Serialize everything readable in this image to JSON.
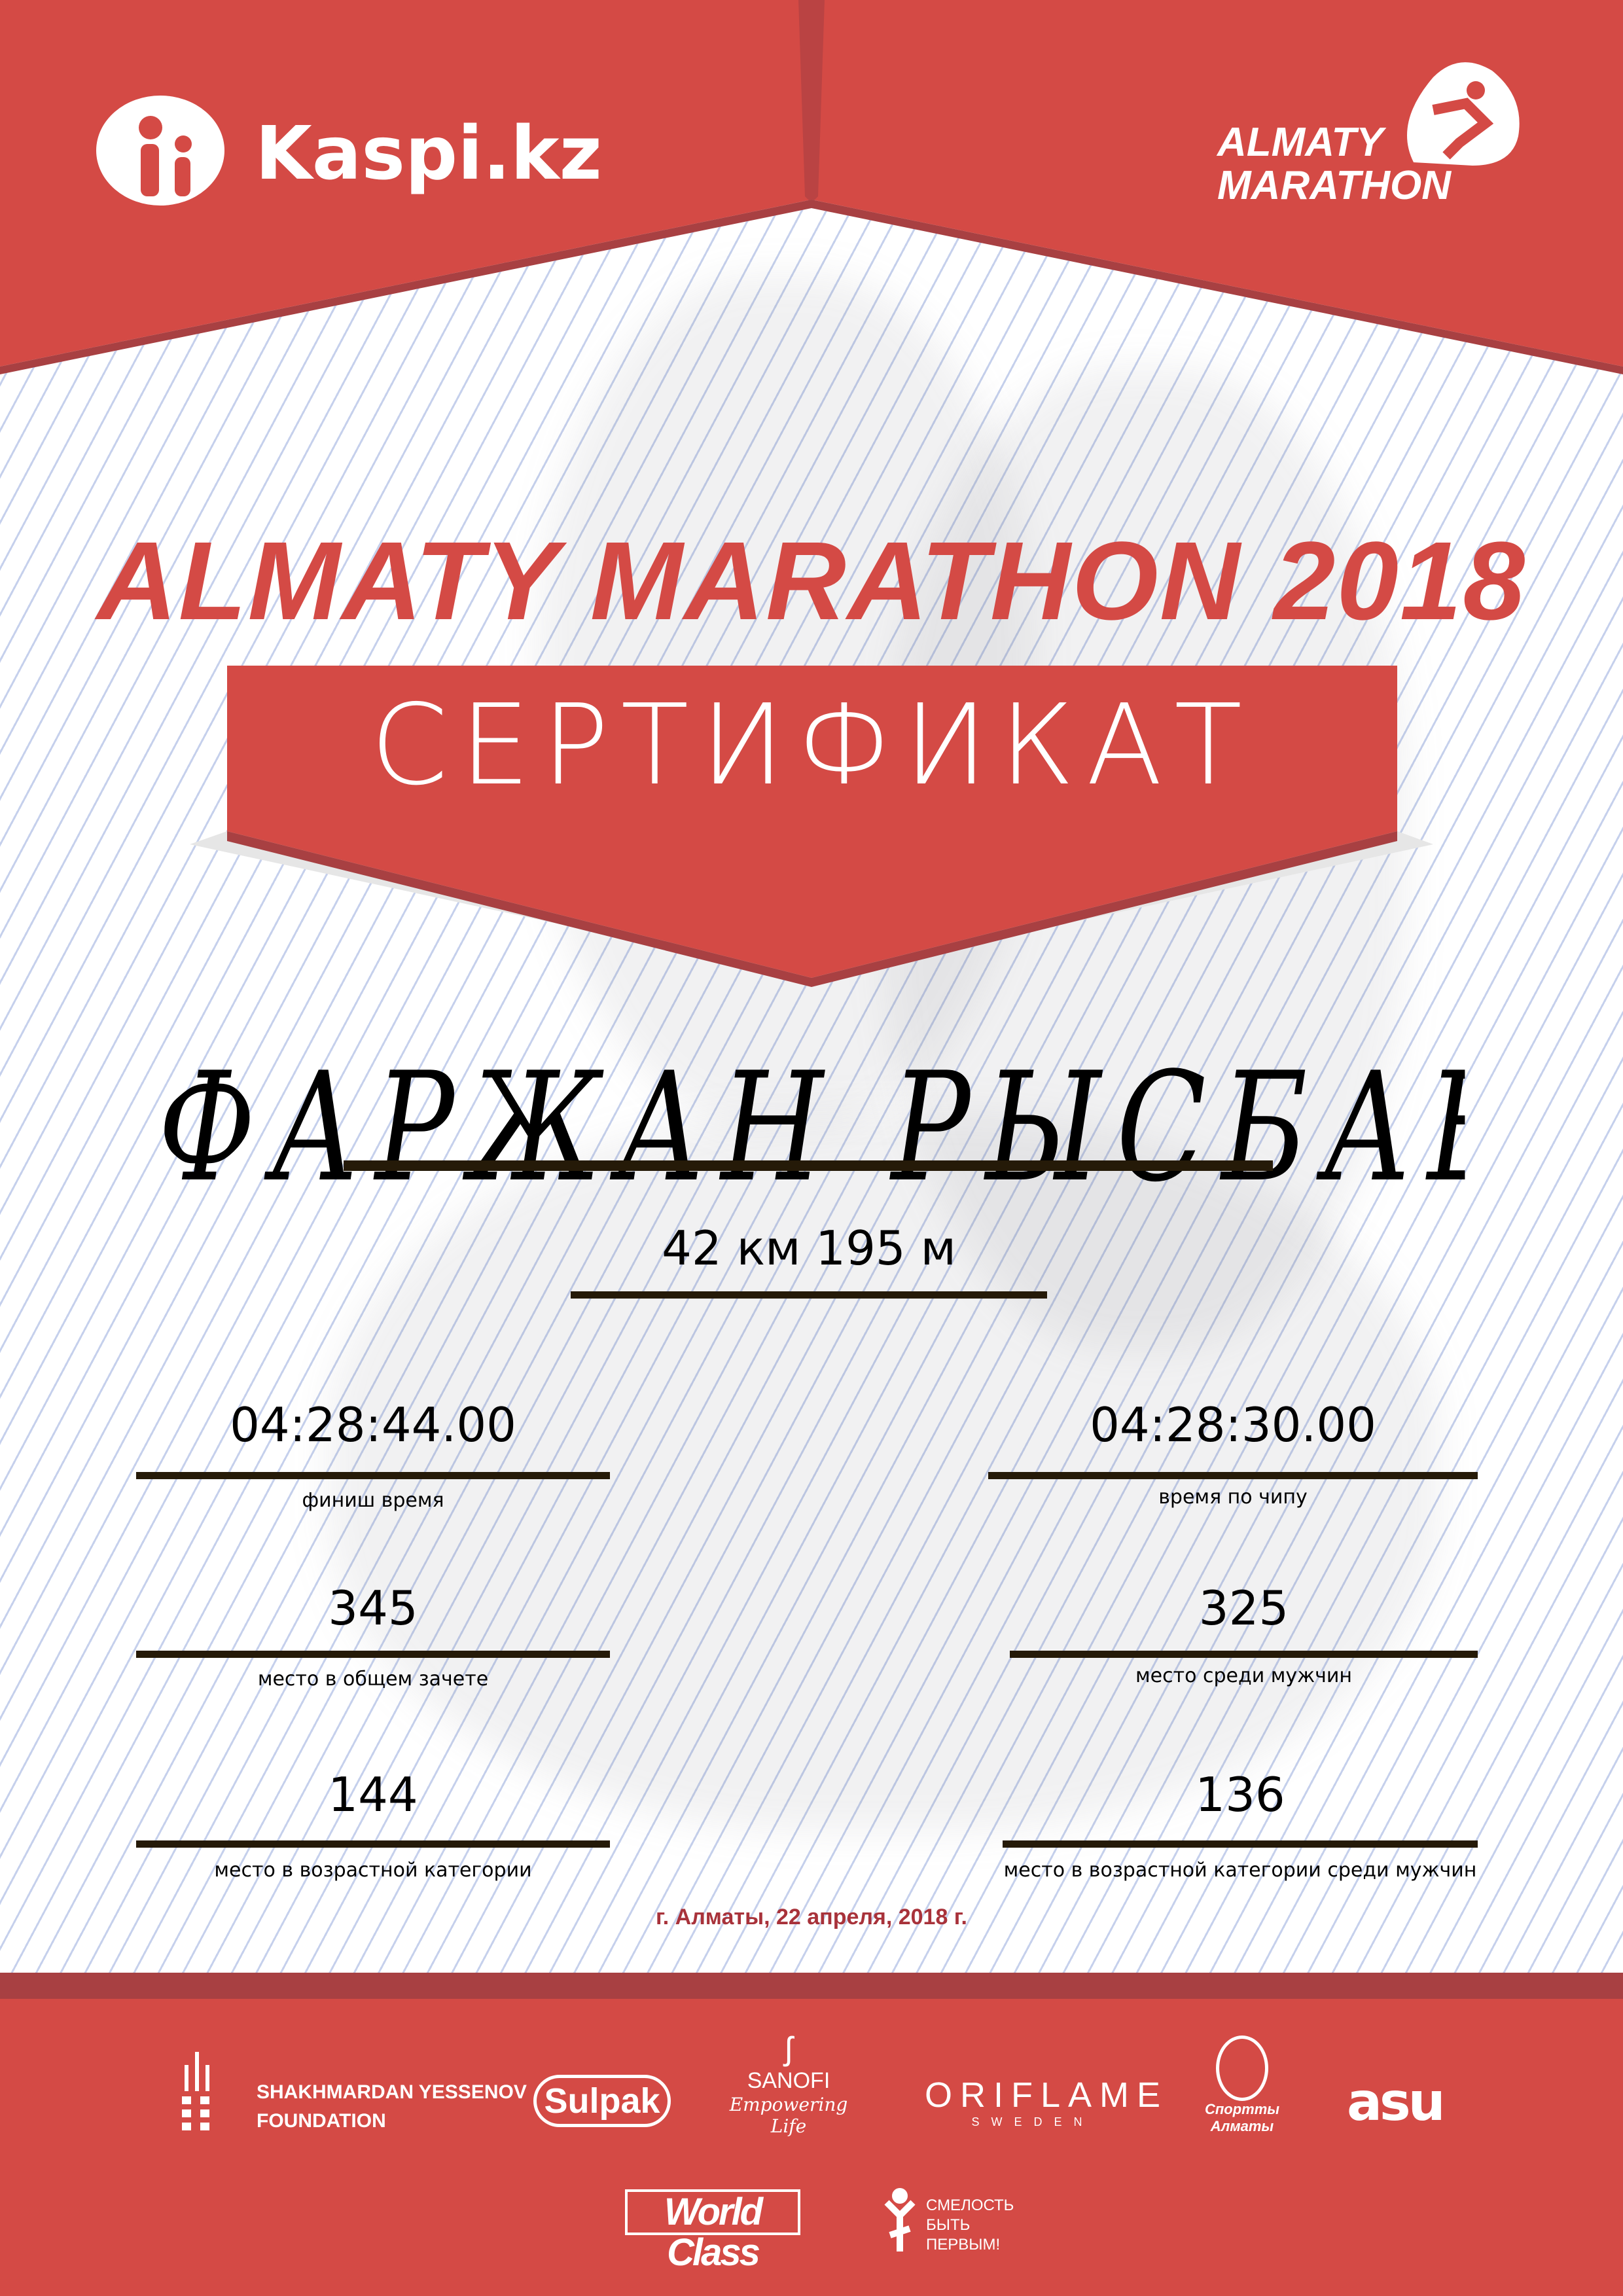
{
  "header": {
    "sponsor_logo": "Kaspi.kz",
    "event_logo_line1": "ALMATY",
    "event_logo_line2": "MARATHON"
  },
  "title": "ALMATY MARATHON 2018",
  "certificate_label": "СЕРТИФИКАТ",
  "participant_name": "ФАРЖАН РЫСБАЕВ",
  "distance": "42 км 195 м",
  "results": {
    "finish_time": {
      "value": "04:28:44.00",
      "label": "финиш время"
    },
    "chip_time": {
      "value": "04:28:30.00",
      "label": "время по чипу"
    },
    "overall_place": {
      "value": "345",
      "label": "место в общем зачете"
    },
    "gender_place": {
      "value": "325",
      "label": "место среди мужчин"
    },
    "age_place": {
      "value": "144",
      "label": "место в возрастной категории"
    },
    "age_gender_place": {
      "value": "136",
      "label": "место в возрастной категории среди мужчин"
    }
  },
  "date_place": "г. Алматы, 22 апреля, 2018 г.",
  "partners": {
    "yessenov_line1": "SHAKHMARDAN YESSENOV",
    "yessenov_line2": "FOUNDATION",
    "sulpak": "Sulpak",
    "sanofi": "SANOFI",
    "sanofi_tagline": "Empowering Life",
    "oriflame": "ORIFLAME",
    "oriflame_sub": "SWEDEN",
    "sport_almaty": "Спортты Алматы",
    "asu": "asu",
    "worldclass": "World Class",
    "fund_line1": "СМЕЛОСТЬ",
    "fund_line2": "БЫТЬ",
    "fund_line3": "ПЕРВЫМ!"
  },
  "colors": {
    "primary_red": "#d44a45",
    "dark_red": "#a84042",
    "date_red": "#a8323a"
  }
}
